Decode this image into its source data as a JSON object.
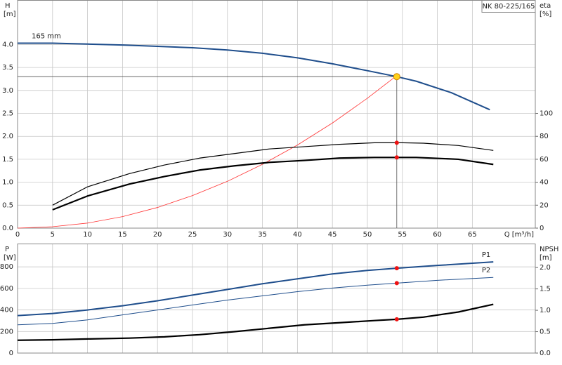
{
  "chart_data": [
    {
      "type": "line",
      "title": "NK 80-225/165",
      "ylabel": "H",
      "yunit": "[m]",
      "y2label": "eta",
      "y2unit": "[%]",
      "xlabel": "Q [m³/h]",
      "xlim": [
        0,
        74
      ],
      "xticks": [
        0,
        5,
        10,
        15,
        20,
        25,
        30,
        35,
        40,
        45,
        50,
        55,
        60,
        65
      ],
      "ylim": [
        0,
        4.97
      ],
      "yticks": [
        {
          "value": 0,
          "label": "0.0"
        },
        0.5,
        {
          "value": 1,
          "label": "1.0"
        },
        1.5,
        {
          "value": 2,
          "label": "2.0"
        },
        2.5,
        {
          "value": 3,
          "label": "3.0"
        },
        3.5,
        {
          "value": 4,
          "label": "4.0"
        }
      ],
      "y2lim": [
        0,
        198.8
      ],
      "y2ticks": [
        0,
        20,
        40,
        60,
        80,
        100
      ],
      "grid": true,
      "series": [
        {
          "name": "165 mm",
          "color": "#1f4e8c",
          "width": 2,
          "x": [
            0,
            5,
            10,
            15,
            20,
            25,
            30,
            35,
            40,
            45,
            50,
            54.2,
            57,
            62,
            67.5
          ],
          "values": [
            4.03,
            4.03,
            4.01,
            3.99,
            3.96,
            3.93,
            3.88,
            3.81,
            3.71,
            3.58,
            3.43,
            3.3,
            3.2,
            2.95,
            2.58
          ]
        },
        {
          "color": "#ff3333",
          "width": 0.8,
          "x": [
            0,
            5,
            10,
            15,
            20,
            25,
            30,
            35,
            40,
            45,
            50,
            54
          ],
          "values": [
            0,
            0.03,
            0.11,
            0.25,
            0.45,
            0.71,
            1.02,
            1.39,
            1.81,
            2.29,
            2.83,
            3.3
          ]
        },
        {
          "color": "#000000",
          "width": 1.2,
          "axis": "y2",
          "x": [
            5,
            10,
            16,
            21,
            26,
            31,
            36,
            41,
            46,
            51,
            55,
            58,
            63,
            68
          ],
          "values": [
            20,
            36,
            47.5,
            55,
            61,
            65,
            69,
            71,
            73,
            74.4,
            74.4,
            74,
            72,
            67.7
          ]
        },
        {
          "color": "#000000",
          "width": 2.2,
          "axis": "y2",
          "x": [
            5,
            10,
            16,
            21,
            26,
            31,
            36,
            41,
            46,
            51,
            57,
            63,
            68
          ],
          "values": [
            16,
            28,
            38.4,
            45,
            50.6,
            54.3,
            57.3,
            59,
            61,
            61.6,
            61.6,
            60,
            55.5
          ]
        }
      ],
      "duty_point": {
        "x": 54.2,
        "y": 3.3
      },
      "points": [
        {
          "x": 54.2,
          "y": 74.4,
          "axis": "y2",
          "color": "#ee1111"
        },
        {
          "x": 54.2,
          "y": 61.6,
          "axis": "y2",
          "color": "#ee1111"
        }
      ]
    },
    {
      "type": "line",
      "ylabel": "P",
      "yunit": "[W]",
      "y2label": "NPSH",
      "y2unit": "[m]",
      "xlim": [
        0,
        74
      ],
      "xticks": [
        0,
        5,
        10,
        15,
        20,
        25,
        30,
        35,
        40,
        45,
        50,
        55,
        60,
        65
      ],
      "ylim": [
        0,
        1016
      ],
      "yticks": [
        0,
        200,
        400,
        600,
        800
      ],
      "y2lim": [
        0,
        2.56
      ],
      "y2ticks": [
        {
          "value": 0,
          "label": "0.0"
        },
        0.5,
        {
          "value": 1,
          "label": "1.0"
        },
        1.5,
        {
          "value": 2,
          "label": "2.0"
        }
      ],
      "grid": true,
      "series": [
        {
          "name": "P1",
          "color": "#1f4e8c",
          "width": 2,
          "x": [
            0,
            5,
            10,
            15,
            20,
            25,
            30,
            35,
            40,
            45,
            50,
            54.2,
            60,
            68
          ],
          "values": [
            348,
            367,
            400,
            439,
            485,
            538,
            590,
            643,
            689,
            734,
            767,
            787,
            813,
            846
          ]
        },
        {
          "name": "P2",
          "color": "#1f4e8c",
          "width": 1,
          "x": [
            0,
            5,
            10,
            15,
            20,
            25,
            30,
            35,
            40,
            45,
            50,
            54.2,
            60,
            68
          ],
          "values": [
            262,
            275,
            308,
            354,
            400,
            446,
            492,
            531,
            570,
            603,
            630,
            649,
            675,
            702
          ]
        },
        {
          "color": "#000000",
          "width": 2.2,
          "axis": "y2",
          "x": [
            0,
            5,
            10,
            16,
            21,
            26,
            31,
            36,
            41,
            46,
            51,
            54.2,
            58,
            63,
            68
          ],
          "values": [
            0.3,
            0.31,
            0.33,
            0.35,
            0.38,
            0.43,
            0.5,
            0.58,
            0.66,
            0.71,
            0.76,
            0.79,
            0.84,
            0.96,
            1.14
          ]
        }
      ],
      "points": [
        {
          "x": 54.2,
          "y": 787,
          "color": "#ee1111"
        },
        {
          "x": 54.2,
          "y": 649,
          "color": "#ee1111"
        },
        {
          "x": 54.2,
          "y": 0.79,
          "axis": "y2",
          "color": "#ee1111"
        }
      ]
    }
  ]
}
